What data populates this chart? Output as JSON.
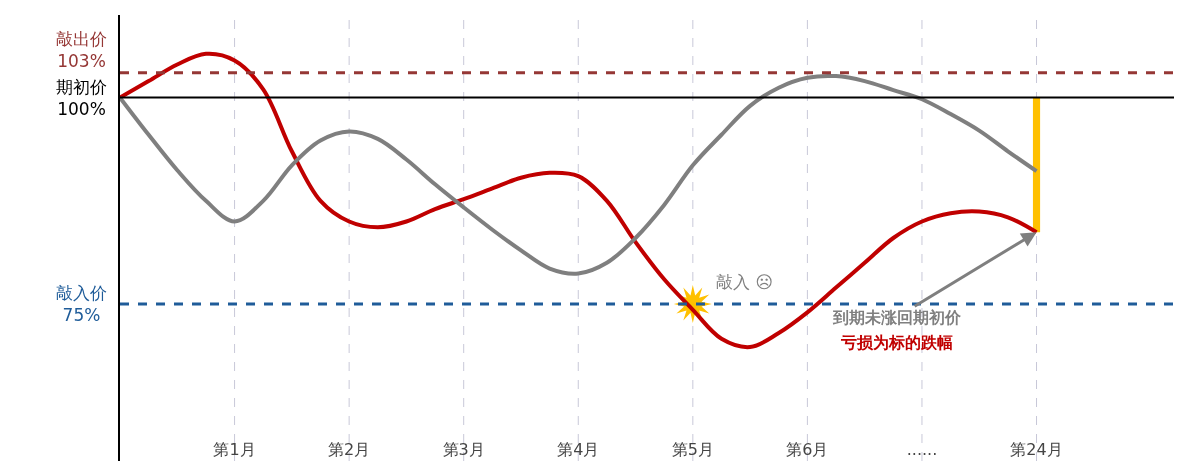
{
  "chart_data": {
    "type": "line",
    "categories": [
      null,
      null,
      null,
      null,
      "第1月",
      null,
      null,
      null,
      "第2月",
      null,
      null,
      null,
      "第3月",
      null,
      null,
      null,
      "第4月",
      null,
      null,
      null,
      "第5月",
      null,
      null,
      null,
      "第6月",
      null,
      null,
      null,
      "......",
      null,
      null,
      null,
      "第24月"
    ],
    "ylim": [
      56,
      110
    ],
    "series": [
      {
        "color": "#c00000",
        "values": [
          100,
          102,
          104,
          105.3,
          104.5,
          101,
          93.5,
          87.5,
          85,
          84.3,
          85,
          86.5,
          87.7,
          89,
          90.3,
          90.9,
          90.5,
          87.5,
          82.5,
          78,
          74.3,
          70.8,
          69.8,
          71.5,
          74,
          77,
          80,
          83,
          85,
          86,
          86.2,
          85.5,
          83.7
        ]
      },
      {
        "color": "#7f7f7f",
        "values": [
          100,
          95.5,
          91.2,
          87.5,
          85,
          87.5,
          91.8,
          94.8,
          95.9,
          95,
          92.5,
          89.5,
          86.7,
          84,
          81.5,
          79.3,
          78.7,
          80,
          83,
          87,
          91.8,
          95.5,
          99,
          101.2,
          102.4,
          102.6,
          102,
          100.9,
          99.8,
          98,
          96,
          93.5,
          91.1
        ]
      },
      {
        "type": "bar",
        "color": "#ffc000",
        "values": [
          null,
          null,
          null,
          null,
          null,
          null,
          null,
          null,
          null,
          null,
          null,
          null,
          null,
          null,
          null,
          null,
          null,
          null,
          null,
          null,
          null,
          null,
          null,
          null,
          null,
          null,
          null,
          null,
          null,
          null,
          null,
          null,
          16.3
        ],
        "base": [
          null,
          null,
          null,
          null,
          null,
          null,
          null,
          null,
          null,
          null,
          null,
          null,
          null,
          null,
          null,
          null,
          null,
          null,
          null,
          null,
          null,
          null,
          null,
          null,
          null,
          null,
          null,
          null,
          null,
          null,
          null,
          null,
          83.7
        ]
      }
    ],
    "ref_lines": [
      {
        "axis": "y",
        "value": 103,
        "label": "敲出价\n103%",
        "color": "#953735",
        "line_style": "dashed"
      },
      {
        "axis": "y",
        "value": 100,
        "label": "期初价\n100%",
        "color": "#000000",
        "line_style": "solid"
      },
      {
        "axis": "y",
        "value": 75,
        "label": "敲入价\n75%",
        "color": "#1f5c99",
        "line_style": "dashed"
      }
    ],
    "annotations": [
      {
        "text": "敲入 ☹",
        "x": "第5月",
        "y": 75
      },
      {
        "text": "到期未涨回期初价",
        "x": "第24月",
        "y": 83.7
      },
      "亏损为标的跌幅"
    ],
    "grid": "x",
    "marker": "none",
    "line_style": "solid",
    "tick_labels": "x"
  }
}
